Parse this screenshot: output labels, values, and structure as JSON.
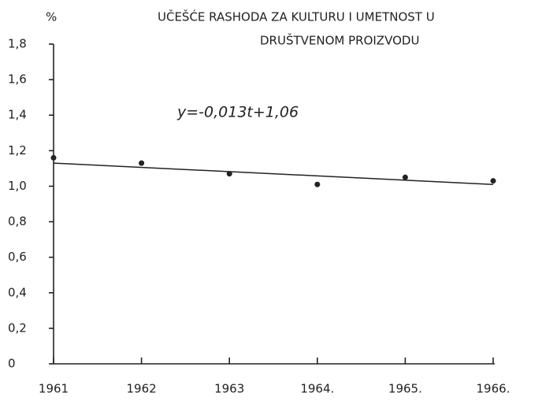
{
  "chart_data": {
    "type": "scatter",
    "title": [
      "UČEŠĆE RASHODA ZA KULTURU I UMETNOST U",
      "DRUŠTVENOM PROIZVODU"
    ],
    "y_label": "%",
    "annotation": "y=-0,013t+1,06",
    "x": [
      1961,
      1962,
      1963,
      1964,
      1965,
      1966
    ],
    "values": [
      1.16,
      1.13,
      1.07,
      1.01,
      1.05,
      1.03
    ],
    "color": "#222222",
    "trend": {
      "x": [
        1961,
        1966
      ],
      "values": [
        1.13,
        1.01
      ]
    },
    "xlim": [
      1961,
      1966
    ],
    "xticks": [
      1961,
      1962,
      1963,
      {
        "value": 1964,
        "label": "1964."
      },
      {
        "value": 1965,
        "label": "1965."
      },
      {
        "value": 1966,
        "label": "1966."
      }
    ],
    "ylim": [
      0,
      1.8
    ],
    "yticks": [
      0,
      {
        "value": 0.2,
        "label": "0,2"
      },
      {
        "value": 0.4,
        "label": "0,4"
      },
      {
        "value": 0.6,
        "label": "0,6"
      },
      {
        "value": 0.8,
        "label": "0,8"
      },
      {
        "value": 1.0,
        "label": "1,0"
      },
      {
        "value": 1.2,
        "label": "1,2"
      },
      {
        "value": 1.4,
        "label": "1,4"
      },
      {
        "value": 1.6,
        "label": "1,6"
      },
      {
        "value": 1.8,
        "label": "1,8"
      }
    ]
  }
}
